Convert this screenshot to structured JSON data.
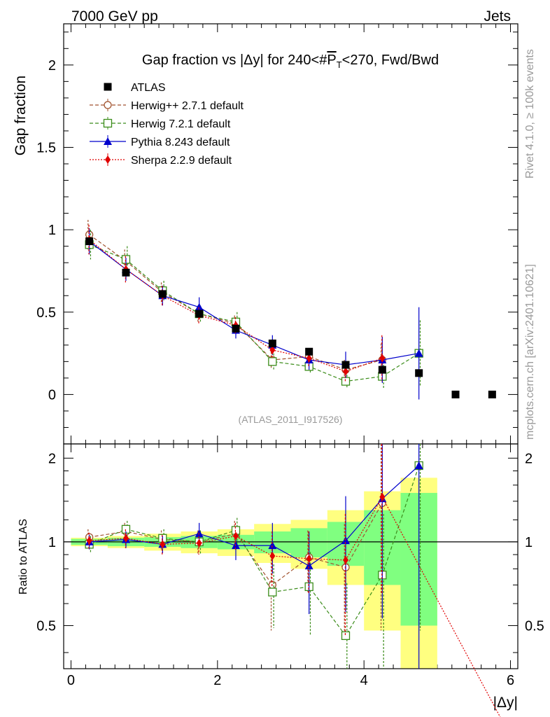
{
  "header": {
    "left": "7000 GeV pp",
    "right": "Jets"
  },
  "side_text": {
    "top": "Rivet 4.1.0, ≥ 100k events",
    "bottom": "mcplots.cern.ch [arXiv:2401.10621]"
  },
  "chart_data": {
    "type": "scatter",
    "title": "Gap fraction vs |Δy| for 240<#P̅T<270, Fwd/Bwd",
    "title_parts": {
      "pre": "Gap fraction vs |Δy| for 240<#",
      "P": "P",
      "T": "T",
      "post": "<270, Fwd/Bwd"
    },
    "watermark": "(ATLAS_2011_I917526)",
    "xlabel": "|Δy|",
    "ylabel": "Gap fraction",
    "ratio_ylabel": "Ratio to ATLAS",
    "xlim": [
      -0.1,
      6.1
    ],
    "ylim": [
      -0.3,
      2.25
    ],
    "ratio_ylim": [
      0.35,
      2.25
    ],
    "x_ticks": [
      0,
      2,
      4,
      6
    ],
    "y_ticks": [
      0,
      0.5,
      1,
      1.5,
      2
    ],
    "ratio_ticks": [
      0.5,
      1,
      2
    ],
    "x_tick_labels": [
      "0",
      "2",
      "4",
      "6"
    ],
    "y_tick_labels": [
      "0",
      "0.5",
      "1",
      "1.5",
      "2"
    ],
    "ratio_tick_labels": [
      "0.5",
      "1",
      "2"
    ],
    "x": [
      0.25,
      0.75,
      1.25,
      1.75,
      2.25,
      2.75,
      3.25,
      3.75,
      4.25,
      4.75,
      5.25,
      5.75
    ],
    "data": {
      "name": "ATLAS",
      "values": [
        0.93,
        0.74,
        0.61,
        0.49,
        0.4,
        0.31,
        0.26,
        0.18,
        0.15,
        0.13,
        0.0,
        0.0
      ],
      "band_inner": [
        0.025,
        0.035,
        0.04,
        0.05,
        0.06,
        0.09,
        0.12,
        0.18,
        0.3,
        0.5
      ],
      "band_outer": [
        0.035,
        0.05,
        0.07,
        0.09,
        0.11,
        0.16,
        0.2,
        0.3,
        0.52,
        0.7
      ]
    },
    "series": [
      {
        "name": "Herwig++ 2.7.1 default",
        "color": "#a0522d",
        "marker": "open-circle",
        "dash": "5,3",
        "values": [
          0.97,
          0.81,
          0.62,
          0.49,
          0.43,
          0.21,
          0.23,
          0.15,
          0.21
        ],
        "errors": [
          0.09,
          0.07,
          0.06,
          0.05,
          0.05,
          0.05,
          0.05,
          0.06,
          0.1
        ],
        "ratio": [
          1.04,
          1.09,
          1.02,
          1.0,
          1.07,
          0.7,
          0.88,
          0.81,
          1.38
        ],
        "ratio_err": [
          0.07,
          0.08,
          0.08,
          0.1,
          0.12,
          0.22,
          0.22,
          0.35,
          0.9
        ]
      },
      {
        "name": "Herwig 7.2.1 default",
        "color": "#3b8c1a",
        "marker": "open-square",
        "dash": "5,3",
        "values": [
          0.91,
          0.82,
          0.63,
          0.49,
          0.44,
          0.2,
          0.17,
          0.08,
          0.11,
          0.25
        ],
        "errors": [
          0.09,
          0.08,
          0.06,
          0.05,
          0.06,
          0.05,
          0.04,
          0.04,
          0.07,
          0.2
        ],
        "ratio": [
          0.98,
          1.11,
          1.03,
          1.0,
          1.1,
          0.66,
          0.69,
          0.46,
          0.76,
          1.88
        ],
        "ratio_err": [
          0.07,
          0.08,
          0.08,
          0.1,
          0.12,
          0.17,
          0.23,
          0.25,
          0.5,
          1.4
        ]
      },
      {
        "name": "Pythia 8.243 default",
        "color": "#0000cc",
        "marker": "triangle",
        "dash": "",
        "values": [
          0.93,
          0.76,
          0.6,
          0.53,
          0.39,
          0.3,
          0.21,
          0.18,
          0.21,
          0.25
        ],
        "errors": [
          0.08,
          0.07,
          0.06,
          0.06,
          0.05,
          0.06,
          0.06,
          0.08,
          0.14,
          0.28
        ],
        "ratio": [
          1.0,
          1.02,
          0.98,
          1.07,
          0.97,
          0.97,
          0.82,
          1.01,
          1.43,
          1.88
        ],
        "ratio_err": [
          0.06,
          0.07,
          0.07,
          0.1,
          0.11,
          0.2,
          0.27,
          0.45,
          0.9,
          2.0
        ]
      },
      {
        "name": "Sherpa 2.2.9 default",
        "color": "#e00000",
        "marker": "diamond",
        "dash": "2,2",
        "values": [
          0.94,
          0.76,
          0.6,
          0.48,
          0.42,
          0.27,
          0.22,
          0.14,
          0.22
        ],
        "errors": [
          0.09,
          0.08,
          0.06,
          0.05,
          0.05,
          0.05,
          0.05,
          0.06,
          0.14
        ],
        "ratio": [
          1.01,
          1.03,
          0.98,
          0.99,
          1.05,
          0.89,
          0.87,
          0.86,
          1.45
        ],
        "ratio_err": [
          0.07,
          0.08,
          0.08,
          0.09,
          0.12,
          0.2,
          0.22,
          0.4,
          0.8
        ],
        "ratio_tail": [
          [
            4.25,
            1.45
          ],
          [
            6.0,
            0.2
          ]
        ]
      }
    ],
    "legend_position": "top-left"
  }
}
